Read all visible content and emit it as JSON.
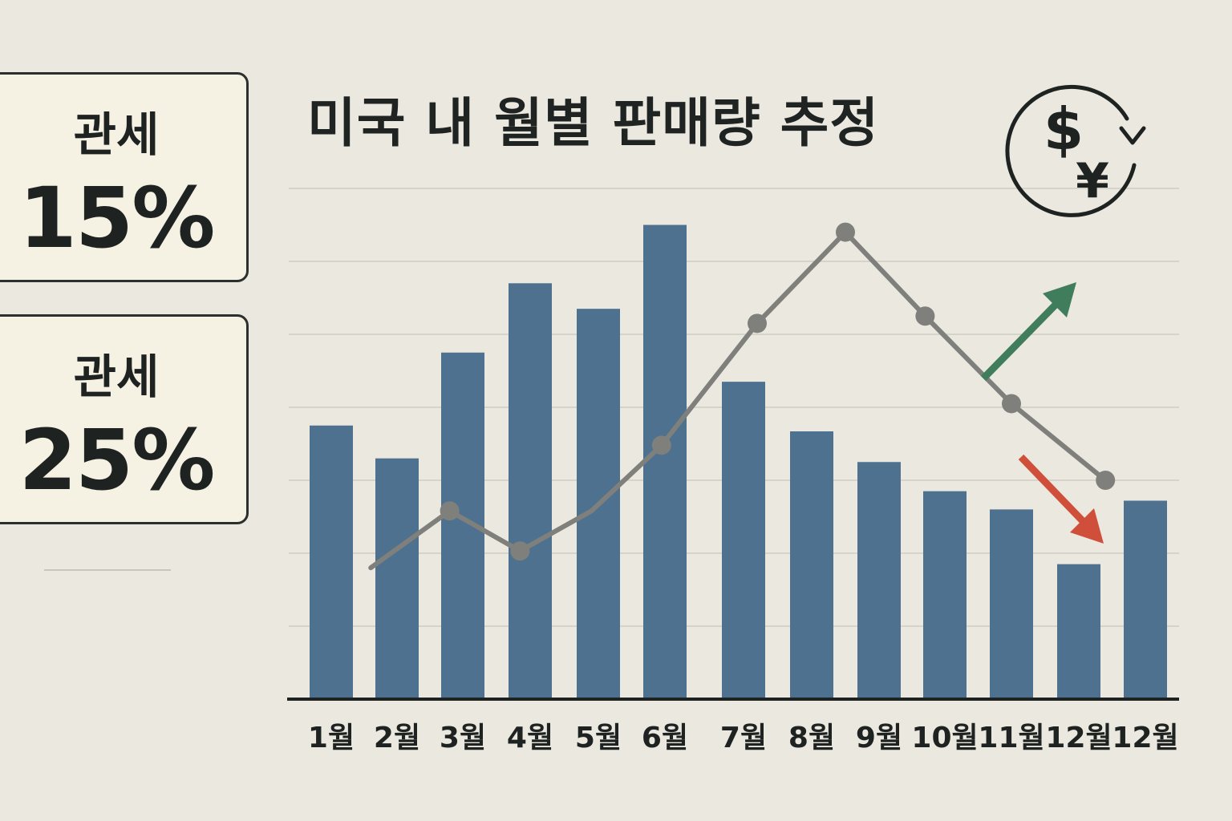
{
  "tariffs": [
    {
      "label": "관세",
      "rate": "15%"
    },
    {
      "label": "관세",
      "rate": "25%"
    }
  ],
  "colors": {
    "bar": "#4d718f",
    "line": "#7f807c",
    "arrow_up": "#3f7d5c",
    "arrow_down": "#cf4f3b",
    "axis": "#1e2322",
    "grid": "#cfccc4"
  },
  "icon": "dollar-yen-exchange-icon",
  "chart_data": {
    "type": "bar",
    "title": "미국 내 월별 판매량 추정",
    "categories": [
      "1월",
      "2월",
      "3월",
      "4월",
      "5월",
      "6월",
      "7월",
      "8월",
      "9월",
      "10월",
      "11월",
      "12월",
      "12월"
    ],
    "ylim": [
      0,
      7
    ],
    "grid": true,
    "series": [
      {
        "values": [
          3.75,
          3.3,
          4.75,
          5.7,
          5.35,
          6.5,
          4.35,
          3.67,
          3.25,
          2.85,
          2.6,
          1.85,
          2.72
        ]
      }
    ],
    "line_series": [
      {
        "x": [
          0.6,
          1.8,
          2.85,
          3.9,
          4.95,
          6.2,
          7.5,
          8.7,
          10.0,
          11.4
        ],
        "values": [
          1.8,
          2.58,
          2.03,
          2.58,
          3.48,
          5.15,
          6.4,
          5.25,
          4.05,
          3.0
        ]
      }
    ],
    "line_markers_x": [
      1.8,
      2.85,
      4.95,
      6.2,
      7.5,
      8.7,
      10.0,
      11.4
    ]
  }
}
